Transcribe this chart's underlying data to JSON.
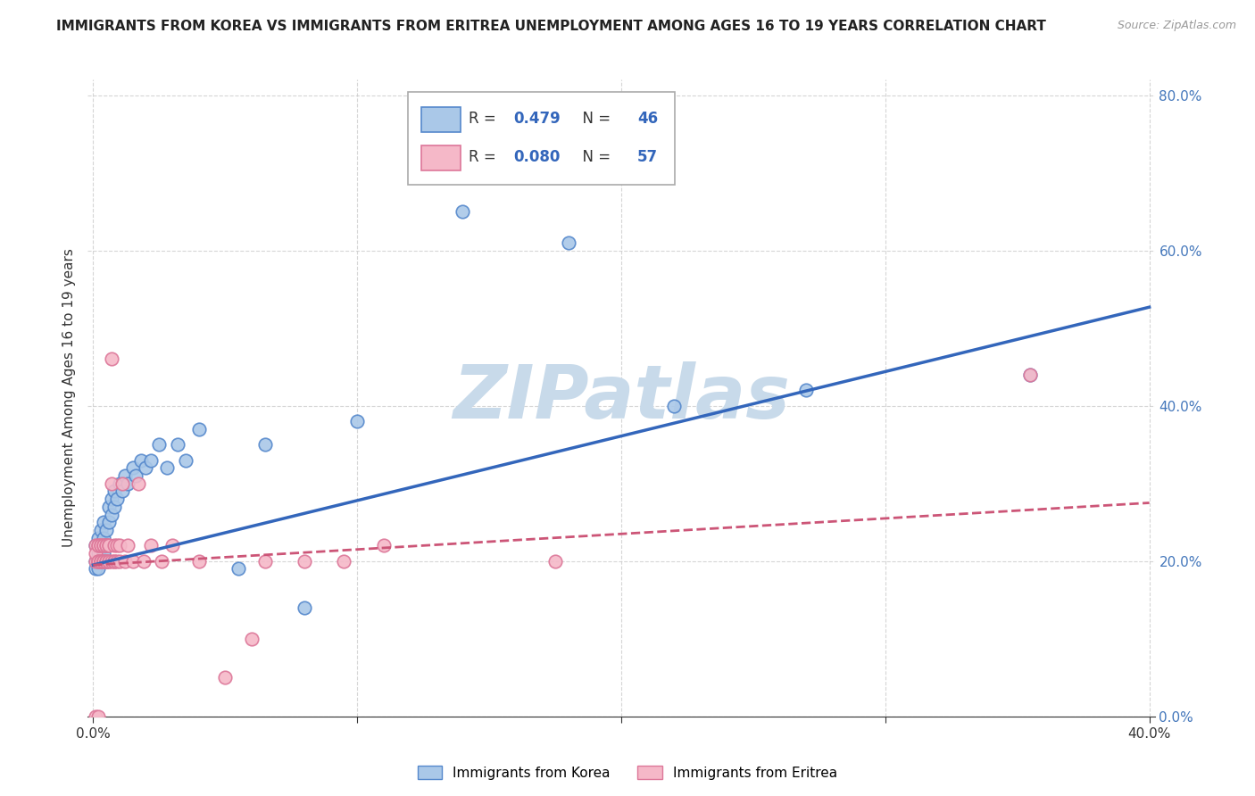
{
  "title": "IMMIGRANTS FROM KOREA VS IMMIGRANTS FROM ERITREA UNEMPLOYMENT AMONG AGES 16 TO 19 YEARS CORRELATION CHART",
  "source": "Source: ZipAtlas.com",
  "ylabel": "Unemployment Among Ages 16 to 19 years",
  "xlabel": "",
  "xlim": [
    -0.002,
    0.402
  ],
  "ylim": [
    0.0,
    0.82
  ],
  "xticks": [
    0.0,
    0.1,
    0.2,
    0.3,
    0.4
  ],
  "xtick_labels_show": [
    "0.0%",
    "",
    "",
    "",
    "40.0%"
  ],
  "yticks": [
    0.0,
    0.2,
    0.4,
    0.6,
    0.8
  ],
  "ytick_labels": [
    "0.0%",
    "20.0%",
    "40.0%",
    "60.0%",
    "80.0%"
  ],
  "korea_color": "#aac8e8",
  "korea_edge": "#5588cc",
  "eritrea_color": "#f5b8c8",
  "eritrea_edge": "#dd7799",
  "korea_R": 0.479,
  "korea_N": 46,
  "eritrea_R": 0.08,
  "eritrea_N": 57,
  "korea_line_color": "#3366bb",
  "eritrea_line_color": "#cc5577",
  "background_color": "#ffffff",
  "grid_color": "#cccccc",
  "watermark": "ZIPatlas",
  "watermark_color": "#c8daea",
  "title_fontsize": 11,
  "axis_label_fontsize": 11,
  "tick_fontsize": 11,
  "korea_line_slope": 0.83,
  "korea_line_intercept": 0.195,
  "eritrea_line_slope": 0.2,
  "eritrea_line_intercept": 0.195,
  "korea_x": [
    0.001,
    0.001,
    0.001,
    0.002,
    0.002,
    0.002,
    0.002,
    0.003,
    0.003,
    0.003,
    0.004,
    0.004,
    0.004,
    0.005,
    0.005,
    0.005,
    0.006,
    0.006,
    0.007,
    0.007,
    0.008,
    0.008,
    0.009,
    0.01,
    0.011,
    0.012,
    0.013,
    0.015,
    0.016,
    0.018,
    0.02,
    0.022,
    0.025,
    0.028,
    0.032,
    0.035,
    0.04,
    0.055,
    0.065,
    0.08,
    0.1,
    0.14,
    0.18,
    0.22,
    0.27,
    0.355
  ],
  "korea_y": [
    0.22,
    0.2,
    0.19,
    0.21,
    0.23,
    0.2,
    0.19,
    0.24,
    0.22,
    0.2,
    0.23,
    0.21,
    0.25,
    0.22,
    0.2,
    0.24,
    0.25,
    0.27,
    0.26,
    0.28,
    0.27,
    0.29,
    0.28,
    0.3,
    0.29,
    0.31,
    0.3,
    0.32,
    0.31,
    0.33,
    0.32,
    0.33,
    0.35,
    0.32,
    0.35,
    0.33,
    0.37,
    0.19,
    0.35,
    0.14,
    0.38,
    0.65,
    0.61,
    0.4,
    0.42,
    0.44
  ],
  "eritrea_x": [
    0.001,
    0.001,
    0.001,
    0.001,
    0.002,
    0.002,
    0.002,
    0.002,
    0.002,
    0.002,
    0.003,
    0.003,
    0.003,
    0.003,
    0.003,
    0.004,
    0.004,
    0.004,
    0.004,
    0.004,
    0.005,
    0.005,
    0.005,
    0.005,
    0.005,
    0.006,
    0.006,
    0.006,
    0.006,
    0.007,
    0.007,
    0.007,
    0.008,
    0.008,
    0.008,
    0.009,
    0.009,
    0.01,
    0.01,
    0.011,
    0.012,
    0.013,
    0.015,
    0.017,
    0.019,
    0.022,
    0.026,
    0.03,
    0.04,
    0.05,
    0.06,
    0.065,
    0.08,
    0.095,
    0.11,
    0.175,
    0.355
  ],
  "eritrea_y": [
    0.2,
    0.22,
    0.21,
    0.0,
    0.2,
    0.22,
    0.2,
    0.0,
    0.2,
    0.22,
    0.2,
    0.22,
    0.2,
    0.22,
    0.2,
    0.2,
    0.22,
    0.2,
    0.22,
    0.2,
    0.2,
    0.22,
    0.2,
    0.22,
    0.2,
    0.2,
    0.22,
    0.2,
    0.22,
    0.3,
    0.46,
    0.2,
    0.2,
    0.22,
    0.2,
    0.22,
    0.2,
    0.2,
    0.22,
    0.3,
    0.2,
    0.22,
    0.2,
    0.3,
    0.2,
    0.22,
    0.2,
    0.22,
    0.2,
    0.05,
    0.1,
    0.2,
    0.2,
    0.2,
    0.22,
    0.2,
    0.44
  ]
}
